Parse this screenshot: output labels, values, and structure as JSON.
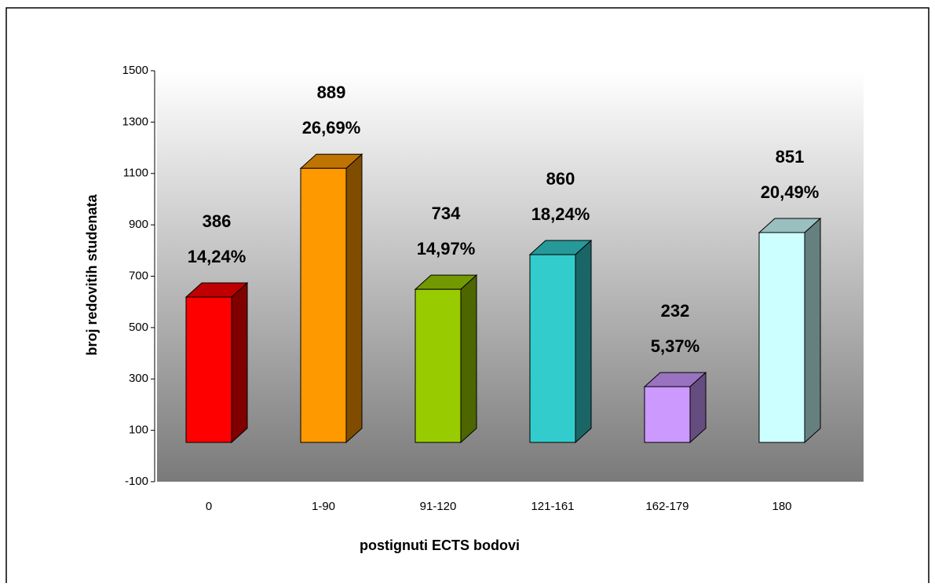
{
  "chart_data": {
    "type": "bar3d",
    "x_label": "postignuti ECTS bodovi",
    "y_label": "broj redovitih studenata",
    "categories": [
      "0",
      "1-90",
      "91-120",
      "121-161",
      "162-179",
      "180"
    ],
    "values": [
      566,
      1067,
      596,
      731,
      217,
      817
    ],
    "counts": [
      386,
      889,
      734,
      860,
      232,
      851
    ],
    "percent_labels": [
      "14,24%",
      "26,69%",
      "14,97%",
      "18,24%",
      "5,37%",
      "20,49%"
    ],
    "colors": [
      "#ff0000",
      "#ff9900",
      "#99cc00",
      "#33cccc",
      "#cc99ff",
      "#ccffff"
    ],
    "ylim": [
      -100,
      1500
    ],
    "yticks": [
      -100,
      100,
      300,
      500,
      700,
      900,
      1100,
      1300,
      1500
    ]
  }
}
